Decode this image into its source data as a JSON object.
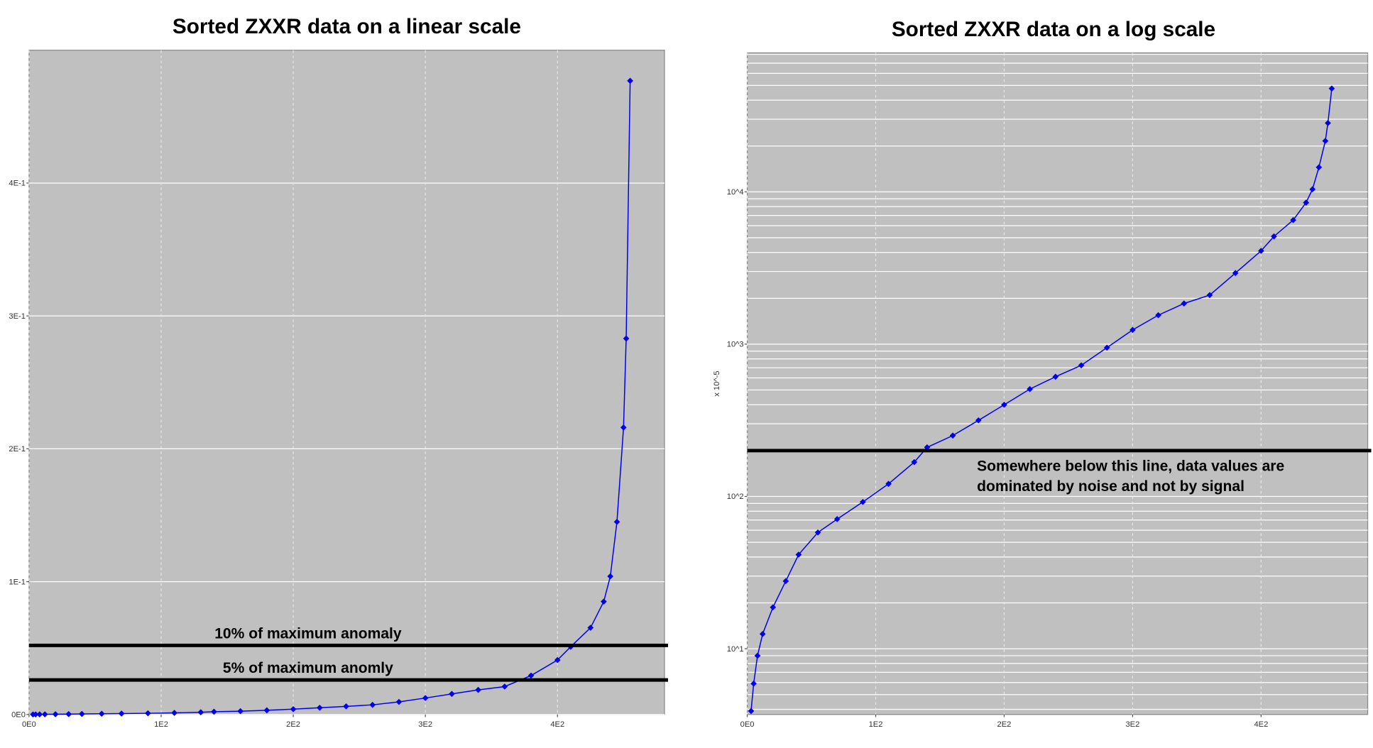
{
  "chart_data": [
    {
      "type": "line",
      "title": "Sorted ZXXR data on a linear scale",
      "color": "#0000ee",
      "marker": "diamond",
      "grid": true,
      "x": [
        3,
        5,
        8,
        12,
        20,
        30,
        40,
        55,
        70,
        90,
        110,
        130,
        140,
        160,
        180,
        200,
        220,
        240,
        260,
        280,
        300,
        320,
        340,
        360,
        380,
        400,
        410,
        425,
        435,
        440,
        445,
        450,
        452,
        455
      ],
      "values": [
        3.9e-05,
        5.9e-05,
        9e-05,
        0.000125,
        0.000187,
        0.000278,
        0.000415,
        0.00058,
        0.00071,
        0.00092,
        0.00121,
        0.00168,
        0.0021,
        0.00251,
        0.00316,
        0.004,
        0.00507,
        0.00611,
        0.00726,
        0.00948,
        0.0124,
        0.0155,
        0.0185,
        0.021,
        0.0293,
        0.041,
        0.051,
        0.0653,
        0.085,
        0.104,
        0.145,
        0.216,
        0.283,
        0.477
      ],
      "xlim": [
        0,
        481
      ],
      "xticks": [
        {
          "value": 0,
          "label": "0E0"
        },
        {
          "value": 100,
          "label": "1E2"
        },
        {
          "value": 200,
          "label": "2E2"
        },
        {
          "value": 300,
          "label": "3E2"
        },
        {
          "value": 400,
          "label": "4E2"
        }
      ],
      "ylim": [
        0,
        0.5
      ],
      "yticks": [
        {
          "value": 0,
          "label": "0E0"
        },
        {
          "value": 0.1,
          "label": "1E-1"
        },
        {
          "value": 0.2,
          "label": "2E-1"
        },
        {
          "value": 0.3,
          "label": "3E-1"
        },
        {
          "value": 0.4,
          "label": "4E-1"
        }
      ],
      "reference_lines": [
        {
          "value": 0.052,
          "lines": [
            "10% of maximum anomaly"
          ]
        },
        {
          "value": 0.026,
          "lines": [
            "5% of maximum anomly"
          ]
        }
      ]
    },
    {
      "type": "line",
      "title": "Sorted ZXXR data on a log scale",
      "color": "#0000ee",
      "marker": "diamond",
      "grid": true,
      "log_scale": true,
      "ylabel": "x 10^-5",
      "x": [
        3,
        5,
        8,
        12,
        20,
        30,
        40,
        55,
        70,
        90,
        110,
        130,
        140,
        160,
        180,
        200,
        220,
        240,
        260,
        280,
        300,
        320,
        340,
        360,
        380,
        400,
        410,
        425,
        435,
        440,
        445,
        450,
        452,
        455
      ],
      "values": [
        3.9,
        5.9,
        9,
        12.5,
        18.7,
        27.8,
        41.5,
        58,
        71,
        92,
        121,
        168,
        210,
        251,
        316,
        400,
        507,
        611,
        726,
        948,
        1240,
        1550,
        1850,
        2100,
        2930,
        4100,
        5100,
        6530,
        8500,
        10400,
        14500,
        21600,
        28300,
        47700
      ],
      "xlim": [
        0,
        483
      ],
      "xticks": [
        {
          "value": 0,
          "label": "0E0"
        },
        {
          "value": 100,
          "label": "1E2"
        },
        {
          "value": 200,
          "label": "2E2"
        },
        {
          "value": 300,
          "label": "3E2"
        },
        {
          "value": 400,
          "label": "4E2"
        }
      ],
      "ylim": [
        3.7,
        81800
      ],
      "yticks": [
        {
          "value": 10,
          "label": "10^1"
        },
        {
          "value": 100,
          "label": "10^2"
        },
        {
          "value": 1000,
          "label": "10^3"
        },
        {
          "value": 10000,
          "label": "10^4"
        }
      ],
      "reference_lines": [
        {
          "value": 200,
          "lines": [
            "Somewhere below this line, data values are",
            "dominated by noise and not by signal"
          ]
        }
      ]
    }
  ]
}
